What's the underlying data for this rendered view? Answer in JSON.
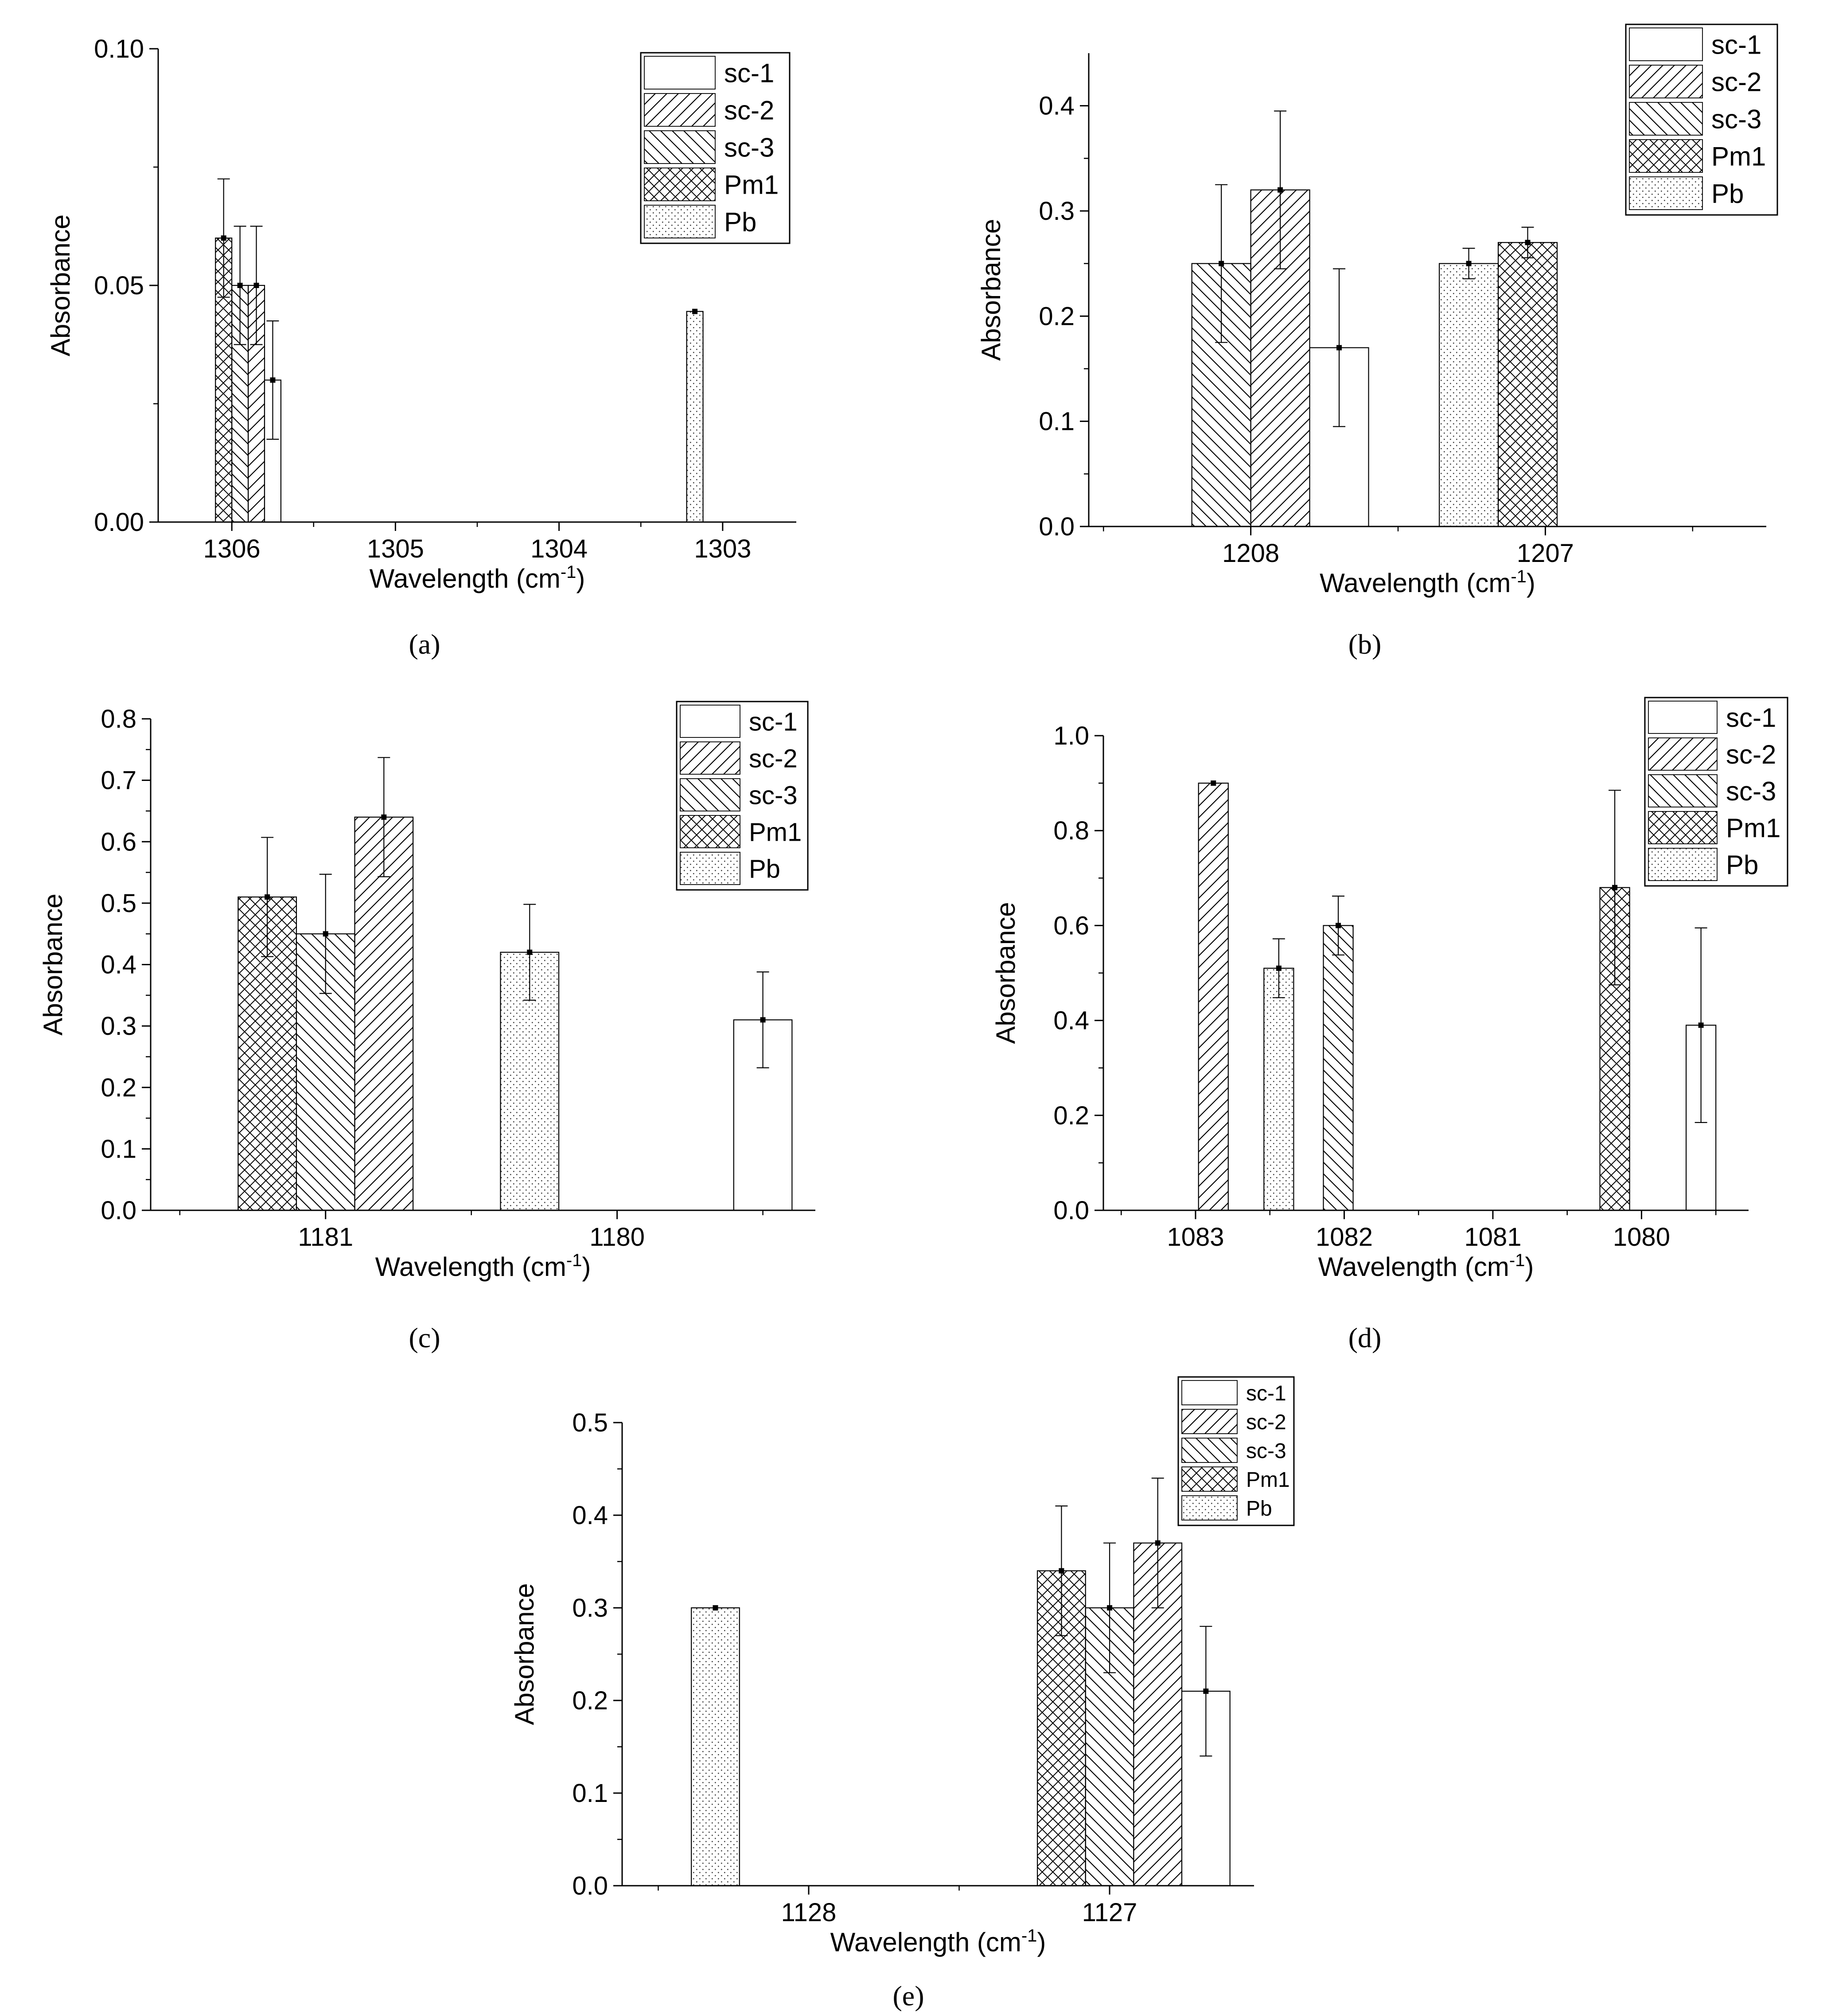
{
  "figure": {
    "captions": [
      "(a)",
      "(b)",
      "(c)",
      "(d)",
      "(e)"
    ]
  },
  "colors": {
    "ink": "#000000",
    "fill": "#ffffff",
    "legend_border": "#000000"
  },
  "chart_data": [
    {
      "id": "a",
      "type": "bar",
      "caption": "(a)",
      "xlabel": "Wavelength (cm-1)",
      "ylabel": "Absorbance",
      "x_reversed": true,
      "xlim": [
        1306.45,
        1302.55
      ],
      "ylim": [
        0,
        0.1
      ],
      "xticks": [
        1306,
        1305,
        1304,
        1303
      ],
      "xtick_labels": [
        "1306",
        "1305",
        "1304",
        "1303"
      ],
      "yticks": [
        0,
        0.05,
        0.1
      ],
      "ytick_labels": [
        "0.00",
        "0.05",
        "0.10"
      ],
      "bar_width": 0.1,
      "legend": {
        "position": "top-right",
        "entries": [
          {
            "name": "sc-1",
            "pattern": "none"
          },
          {
            "name": "sc-2",
            "pattern": "fwd"
          },
          {
            "name": "sc-3",
            "pattern": "back"
          },
          {
            "name": "Pm1",
            "pattern": "cross"
          },
          {
            "name": "Pb",
            "pattern": "dots"
          }
        ]
      },
      "bars": [
        {
          "series": "Pm1",
          "x": 1306.05,
          "value": 0.06,
          "error": 0.0125
        },
        {
          "series": "sc-3",
          "x": 1305.95,
          "value": 0.05,
          "error": 0.0125
        },
        {
          "series": "sc-2",
          "x": 1305.85,
          "value": 0.05,
          "error": 0.0125
        },
        {
          "series": "sc-1",
          "x": 1305.75,
          "value": 0.03,
          "error": 0.0125
        },
        {
          "series": "Pb",
          "x": 1303.17,
          "value": 0.0445,
          "error": 0.0
        }
      ]
    },
    {
      "id": "b",
      "type": "bar",
      "caption": "(b)",
      "xlabel": "Wavelength (cm-1)",
      "ylabel": "Absorbance",
      "x_reversed": true,
      "xlim": [
        1208.55,
        1206.25
      ],
      "ylim": [
        0,
        0.45
      ],
      "xticks": [
        1208,
        1207
      ],
      "xtick_labels": [
        "1208",
        "1207"
      ],
      "yticks": [
        0,
        0.1,
        0.2,
        0.3,
        0.4
      ],
      "ytick_labels": [
        "0.0",
        "0.1",
        "0.2",
        "0.3",
        "0.4"
      ],
      "bar_width": 0.2,
      "legend": {
        "position": "top-right",
        "entries": [
          {
            "name": "sc-1",
            "pattern": "none"
          },
          {
            "name": "sc-2",
            "pattern": "fwd"
          },
          {
            "name": "sc-3",
            "pattern": "back"
          },
          {
            "name": "Pm1",
            "pattern": "cross"
          },
          {
            "name": "Pb",
            "pattern": "dots"
          }
        ]
      },
      "bars": [
        {
          "series": "sc-3",
          "x": 1208.1,
          "value": 0.25,
          "error": 0.075
        },
        {
          "series": "sc-2",
          "x": 1207.9,
          "value": 0.32,
          "error": 0.075
        },
        {
          "series": "sc-1",
          "x": 1207.7,
          "value": 0.17,
          "error": 0.075
        },
        {
          "series": "Pb",
          "x": 1207.26,
          "value": 0.25,
          "error": 0.0145
        },
        {
          "series": "Pm1",
          "x": 1207.06,
          "value": 0.27,
          "error": 0.0145
        }
      ]
    },
    {
      "id": "c",
      "type": "bar",
      "caption": "(c)",
      "xlabel": "Wavelength (cm-1)",
      "ylabel": "Absorbance",
      "x_reversed": true,
      "xlim": [
        1181.6,
        1179.32
      ],
      "ylim": [
        0,
        0.8
      ],
      "xticks": [
        1181,
        1180
      ],
      "xtick_labels": [
        "1181",
        "1180"
      ],
      "yticks": [
        0,
        0.1,
        0.2,
        0.3,
        0.4,
        0.5,
        0.6,
        0.7,
        0.8
      ],
      "ytick_labels": [
        "0.0",
        "0.1",
        "0.2",
        "0.3",
        "0.4",
        "0.5",
        "0.6",
        "0.7",
        "0.8"
      ],
      "bar_width": 0.2,
      "legend": {
        "position": "top-right",
        "entries": [
          {
            "name": "sc-1",
            "pattern": "none"
          },
          {
            "name": "sc-2",
            "pattern": "fwd"
          },
          {
            "name": "sc-3",
            "pattern": "back"
          },
          {
            "name": "Pm1",
            "pattern": "cross"
          },
          {
            "name": "Pb",
            "pattern": "dots"
          }
        ]
      },
      "bars": [
        {
          "series": "Pm1",
          "x": 1181.2,
          "value": 0.51,
          "error": 0.097
        },
        {
          "series": "sc-3",
          "x": 1181.0,
          "value": 0.45,
          "error": 0.097
        },
        {
          "series": "sc-2",
          "x": 1180.8,
          "value": 0.64,
          "error": 0.097
        },
        {
          "series": "Pb",
          "x": 1180.3,
          "value": 0.42,
          "error": 0.078
        },
        {
          "series": "sc-1",
          "x": 1179.5,
          "value": 0.31,
          "error": 0.078
        }
      ]
    },
    {
      "id": "d",
      "type": "bar",
      "caption": "(d)",
      "xlabel": "Wavelength (cm-1)",
      "ylabel": "Absorbance",
      "x_reversed": true,
      "xlim": [
        1083.62,
        1079.28
      ],
      "ylim": [
        0,
        1.0
      ],
      "xticks": [
        1083,
        1082,
        1081,
        1080
      ],
      "xtick_labels": [
        "1083",
        "1082",
        "1081",
        "1080"
      ],
      "yticks": [
        0,
        0.2,
        0.4,
        0.6,
        0.8,
        1.0
      ],
      "ytick_labels": [
        "0.0",
        "0.2",
        "0.4",
        "0.6",
        "0.8",
        "1.0"
      ],
      "bar_width": 0.2,
      "legend": {
        "position": "top-right",
        "entries": [
          {
            "name": "sc-1",
            "pattern": "none"
          },
          {
            "name": "sc-2",
            "pattern": "fwd"
          },
          {
            "name": "sc-3",
            "pattern": "back"
          },
          {
            "name": "Pm1",
            "pattern": "cross"
          },
          {
            "name": "Pb",
            "pattern": "dots"
          }
        ]
      },
      "bars": [
        {
          "series": "sc-2",
          "x": 1082.88,
          "value": 0.9,
          "error": 0.0
        },
        {
          "series": "Pb",
          "x": 1082.44,
          "value": 0.51,
          "error": 0.062
        },
        {
          "series": "sc-3",
          "x": 1082.04,
          "value": 0.6,
          "error": 0.062
        },
        {
          "series": "Pm1",
          "x": 1080.18,
          "value": 0.68,
          "error": 0.205
        },
        {
          "series": "sc-1",
          "x": 1079.6,
          "value": 0.39,
          "error": 0.205
        }
      ]
    },
    {
      "id": "e",
      "type": "bar",
      "caption": "(e)",
      "xlabel": "Wavelength (cm-1)",
      "ylabel": "Absorbance",
      "x_reversed": true,
      "xlim": [
        1128.62,
        1126.52
      ],
      "ylim": [
        0,
        0.5
      ],
      "xticks": [
        1128,
        1127
      ],
      "xtick_labels": [
        "1128",
        "1127"
      ],
      "yticks": [
        0,
        0.1,
        0.2,
        0.3,
        0.4,
        0.5
      ],
      "ytick_labels": [
        "0.0",
        "0.1",
        "0.2",
        "0.3",
        "0.4",
        "0.5"
      ],
      "bar_width": 0.16,
      "legend": {
        "position": "top-right",
        "entries": [
          {
            "name": "sc-1",
            "pattern": "none"
          },
          {
            "name": "sc-2",
            "pattern": "fwd"
          },
          {
            "name": "sc-3",
            "pattern": "back"
          },
          {
            "name": "Pm1",
            "pattern": "cross"
          },
          {
            "name": "Pb",
            "pattern": "dots"
          }
        ]
      },
      "bars": [
        {
          "series": "Pb",
          "x": 1128.31,
          "value": 0.3,
          "error": 0.0
        },
        {
          "series": "Pm1",
          "x": 1127.16,
          "value": 0.34,
          "error": 0.07
        },
        {
          "series": "sc-3",
          "x": 1127.0,
          "value": 0.3,
          "error": 0.07
        },
        {
          "series": "sc-2",
          "x": 1126.84,
          "value": 0.37,
          "error": 0.07
        },
        {
          "series": "sc-1",
          "x": 1126.68,
          "value": 0.21,
          "error": 0.07
        }
      ]
    }
  ]
}
